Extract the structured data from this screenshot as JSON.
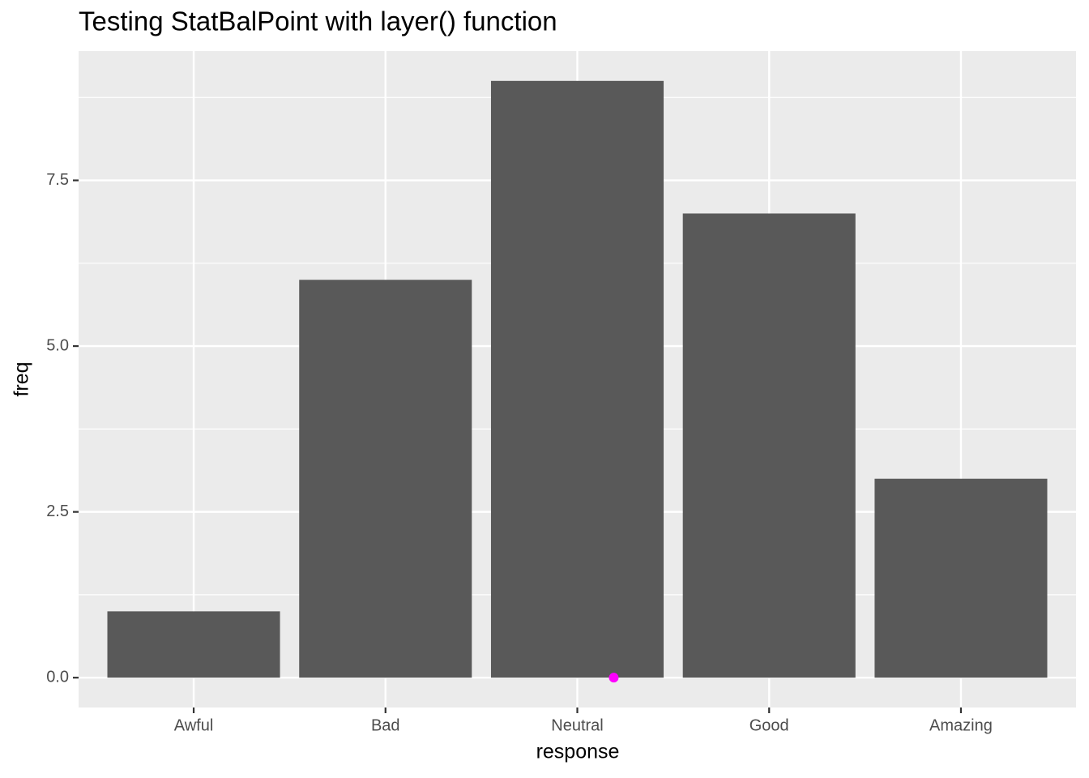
{
  "chart_data": {
    "type": "bar",
    "title": "Testing StatBalPoint with layer() function",
    "x_label": "response",
    "y_label": "freq",
    "categories": [
      "Awful",
      "Bad",
      "Neutral",
      "Good",
      "Amazing"
    ],
    "values": [
      1,
      6,
      9,
      7,
      3
    ],
    "color": "#595959",
    "points": {
      "color": "#ff00ff",
      "x": [
        3.19
      ],
      "y": [
        0
      ]
    },
    "ylim": [
      -0.45,
      9.45
    ],
    "yticks": [
      {
        "value": 0,
        "label": "0.0"
      },
      2.5,
      {
        "value": 5,
        "label": "5.0"
      },
      7.5
    ],
    "minor_yticks": [
      1.25,
      3.75,
      6.25,
      8.75
    ],
    "grid": true
  }
}
